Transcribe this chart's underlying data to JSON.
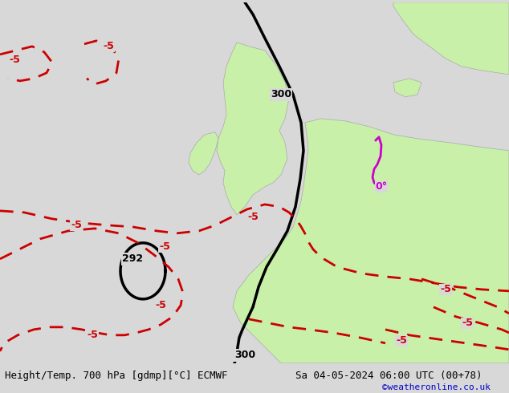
{
  "title_left": "Height/Temp. 700 hPa [gdmp][°C] ECMWF",
  "title_right": "Sa 04-05-2024 06:00 UTC (00+78)",
  "watermark": "©weatheronline.co.uk",
  "bg_color": "#d8d8d8",
  "land_color": "#c8f0a8",
  "land_border_color": "#aaaaaa",
  "sea_color": "#d8d8d8",
  "fig_width": 6.34,
  "fig_height": 4.9,
  "dpi": 100,
  "black_contour_color": "#000000",
  "red_contour_color": "#cc0000",
  "magenta_contour_color": "#cc00cc",
  "black_contour_lw": 2.5,
  "red_contour_lw": 2.0,
  "magenta_contour_lw": 2.0,
  "label_fontsize": 9,
  "footer_fontsize": 9,
  "watermark_color": "#0000cc"
}
